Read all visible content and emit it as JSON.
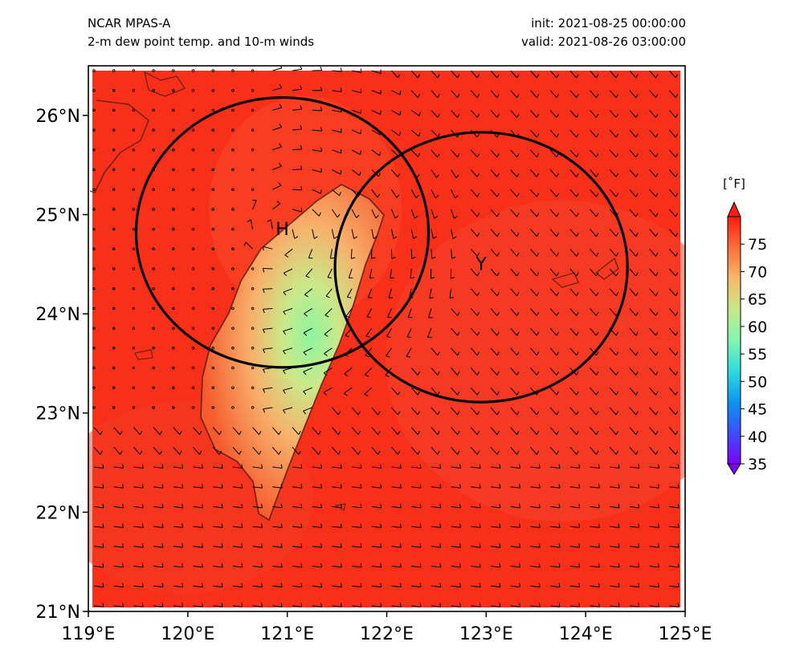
{
  "header": {
    "model": "NCAR MPAS-A",
    "field": "2-m dew point temp. and 10-m winds",
    "init": "init: 2021-08-25 00:00:00",
    "valid": "valid: 2021-08-26 03:00:00"
  },
  "map": {
    "lon_range": [
      119,
      125
    ],
    "lat_range": [
      21,
      26.5
    ],
    "lon_ticks": [
      "119°E",
      "120°E",
      "121°E",
      "122°E",
      "123°E",
      "124°E",
      "125°E"
    ],
    "lat_ticks": [
      "21°N",
      "22°N",
      "23°N",
      "24°N",
      "25°N",
      "26°N"
    ],
    "background_color": "#f8301a",
    "coastline_color": "#5a1a10",
    "markers": [
      {
        "label": "H",
        "lon": 120.95,
        "lat": 24.85
      },
      {
        "label": "Y",
        "lon": 122.95,
        "lat": 24.5
      }
    ],
    "circles": [
      {
        "center_lon": 120.95,
        "center_lat": 24.82,
        "radius_lon_deg": 1.47,
        "radius_lat_deg": 1.36
      },
      {
        "center_lon": 122.95,
        "center_lat": 24.47,
        "radius_lon_deg": 1.47,
        "radius_lat_deg": 1.36
      }
    ]
  },
  "colorbar": {
    "unit": "[˚F]",
    "ticks": [
      "35",
      "40",
      "45",
      "50",
      "55",
      "60",
      "65",
      "70",
      "75"
    ],
    "range": [
      35,
      80
    ],
    "colors": [
      "#7f00ff",
      "#3c4efb",
      "#0a95ef",
      "#2ddbde",
      "#82f6b0",
      "#c6e888",
      "#f6b96b",
      "#fd6e3b",
      "#ff1c0e"
    ]
  }
}
